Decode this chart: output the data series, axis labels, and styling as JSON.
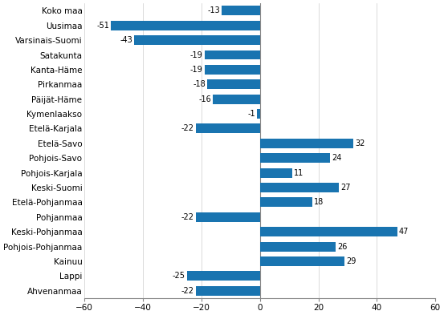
{
  "categories": [
    "Koko maa",
    "Uusimaa",
    "Varsinais-Suomi",
    "Satakunta",
    "Kanta-Häme",
    "Pirkanmaa",
    "Päijät-Häme",
    "Kymenlaakso",
    "Etelä-Karjala",
    "Etelä-Savo",
    "Pohjois-Savo",
    "Pohjois-Karjala",
    "Keski-Suomi",
    "Etelä-Pohjanmaa",
    "Pohjanmaa",
    "Keski-Pohjanmaa",
    "Pohjois-Pohjanmaa",
    "Kainuu",
    "Lappi",
    "Ahvenanmaa"
  ],
  "values": [
    -13,
    -51,
    -43,
    -19,
    -19,
    -18,
    -16,
    -1,
    -22,
    32,
    24,
    11,
    27,
    18,
    -22,
    47,
    26,
    29,
    -25,
    -22
  ],
  "bar_color": "#1974B0",
  "xlim": [
    -60,
    60
  ],
  "xticks": [
    -60,
    -40,
    -20,
    0,
    20,
    40,
    60
  ],
  "bar_height": 0.65,
  "label_fontsize": 7.5,
  "tick_fontsize": 7.5,
  "value_fontsize": 7.0,
  "grid_color": "#cccccc",
  "spine_color": "#888888"
}
